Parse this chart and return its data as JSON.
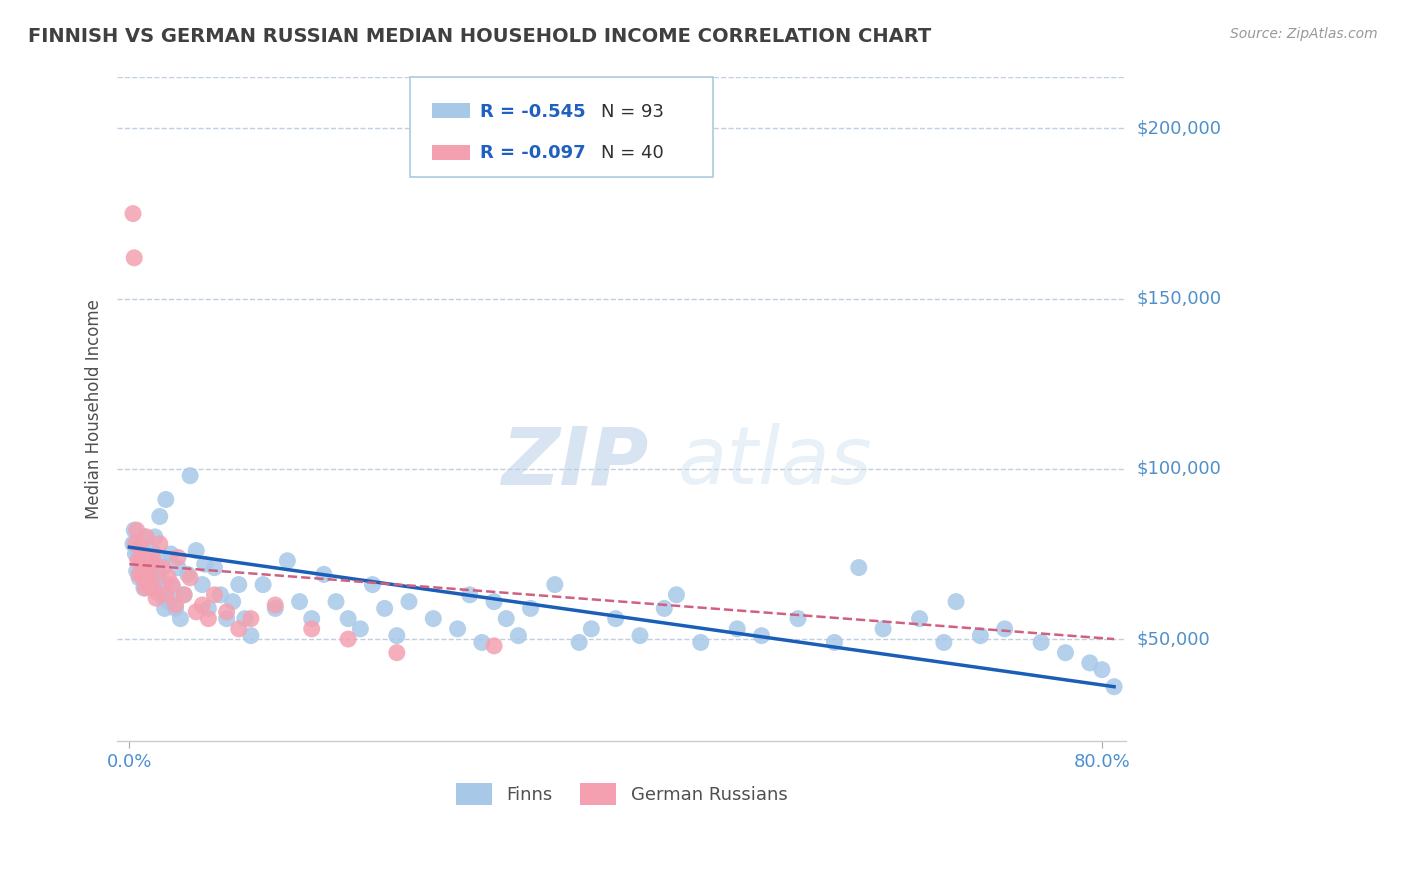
{
  "title": "FINNISH VS GERMAN RUSSIAN MEDIAN HOUSEHOLD INCOME CORRELATION CHART",
  "source": "Source: ZipAtlas.com",
  "ylabel": "Median Household Income",
  "watermark_zip": "ZIP",
  "watermark_atlas": "atlas",
  "xlim": [
    -0.01,
    0.82
  ],
  "ylim": [
    20000,
    215000
  ],
  "ytick_vals": [
    50000,
    100000,
    150000,
    200000
  ],
  "ytick_labels": [
    "$50,000",
    "$100,000",
    "$150,000",
    "$200,000"
  ],
  "series1_name": "Finns",
  "series1_R": -0.545,
  "series1_N": 93,
  "series1_color": "#a8c8e8",
  "series1_line_color": "#1a5eb8",
  "series2_name": "German Russians",
  "series2_R": -0.097,
  "series2_N": 40,
  "series2_color": "#f4a0b0",
  "series2_line_color": "#d06080",
  "background_color": "#ffffff",
  "grid_color": "#c0d0e0",
  "title_color": "#404040",
  "axis_label_color": "#505050",
  "tick_label_color": "#4a90d0",
  "right_tick_color": "#5090c8",
  "legend_R_color": "#2060c0",
  "legend_N_color": "#303030",
  "finns_x": [
    0.003,
    0.004,
    0.005,
    0.006,
    0.007,
    0.008,
    0.009,
    0.01,
    0.011,
    0.012,
    0.013,
    0.014,
    0.015,
    0.016,
    0.017,
    0.018,
    0.019,
    0.02,
    0.021,
    0.022,
    0.023,
    0.024,
    0.025,
    0.026,
    0.027,
    0.028,
    0.029,
    0.03,
    0.032,
    0.034,
    0.036,
    0.038,
    0.04,
    0.042,
    0.045,
    0.048,
    0.05,
    0.055,
    0.06,
    0.062,
    0.065,
    0.07,
    0.075,
    0.08,
    0.085,
    0.09,
    0.095,
    0.1,
    0.11,
    0.12,
    0.13,
    0.14,
    0.15,
    0.16,
    0.17,
    0.18,
    0.19,
    0.2,
    0.21,
    0.22,
    0.23,
    0.25,
    0.27,
    0.28,
    0.29,
    0.3,
    0.31,
    0.32,
    0.33,
    0.35,
    0.37,
    0.38,
    0.4,
    0.42,
    0.44,
    0.45,
    0.47,
    0.5,
    0.52,
    0.55,
    0.58,
    0.6,
    0.62,
    0.65,
    0.67,
    0.68,
    0.7,
    0.72,
    0.75,
    0.77,
    0.79,
    0.8,
    0.81
  ],
  "finns_y": [
    78000,
    82000,
    75000,
    70000,
    76000,
    68000,
    73000,
    71000,
    77000,
    65000,
    80000,
    72000,
    66000,
    69000,
    74000,
    70000,
    76000,
    67000,
    80000,
    64000,
    71000,
    68000,
    86000,
    63000,
    73000,
    66000,
    59000,
    91000,
    61000,
    75000,
    65000,
    59000,
    71000,
    56000,
    63000,
    69000,
    98000,
    76000,
    66000,
    72000,
    59000,
    71000,
    63000,
    56000,
    61000,
    66000,
    56000,
    51000,
    66000,
    59000,
    73000,
    61000,
    56000,
    69000,
    61000,
    56000,
    53000,
    66000,
    59000,
    51000,
    61000,
    56000,
    53000,
    63000,
    49000,
    61000,
    56000,
    51000,
    59000,
    66000,
    49000,
    53000,
    56000,
    51000,
    59000,
    63000,
    49000,
    53000,
    51000,
    56000,
    49000,
    71000,
    53000,
    56000,
    49000,
    61000,
    51000,
    53000,
    49000,
    46000,
    43000,
    41000,
    36000
  ],
  "german_x": [
    0.003,
    0.004,
    0.005,
    0.006,
    0.007,
    0.008,
    0.009,
    0.01,
    0.011,
    0.012,
    0.013,
    0.014,
    0.015,
    0.016,
    0.017,
    0.018,
    0.019,
    0.02,
    0.022,
    0.025,
    0.028,
    0.03,
    0.032,
    0.035,
    0.038,
    0.04,
    0.045,
    0.05,
    0.055,
    0.06,
    0.065,
    0.07,
    0.08,
    0.09,
    0.1,
    0.12,
    0.15,
    0.18,
    0.22,
    0.3
  ],
  "german_y": [
    175000,
    162000,
    78000,
    82000,
    73000,
    69000,
    77000,
    74000,
    68000,
    72000,
    65000,
    80000,
    70000,
    66000,
    73000,
    68000,
    74000,
    65000,
    62000,
    78000,
    71000,
    63000,
    68000,
    66000,
    60000,
    74000,
    63000,
    68000,
    58000,
    60000,
    56000,
    63000,
    58000,
    53000,
    56000,
    60000,
    53000,
    50000,
    46000,
    48000
  ],
  "line1_x0": 0.0,
  "line1_y0": 77000,
  "line1_x1": 0.81,
  "line1_y1": 36000,
  "line2_x0": 0.0,
  "line2_y0": 72000,
  "line2_x1": 0.81,
  "line2_y1": 50000
}
